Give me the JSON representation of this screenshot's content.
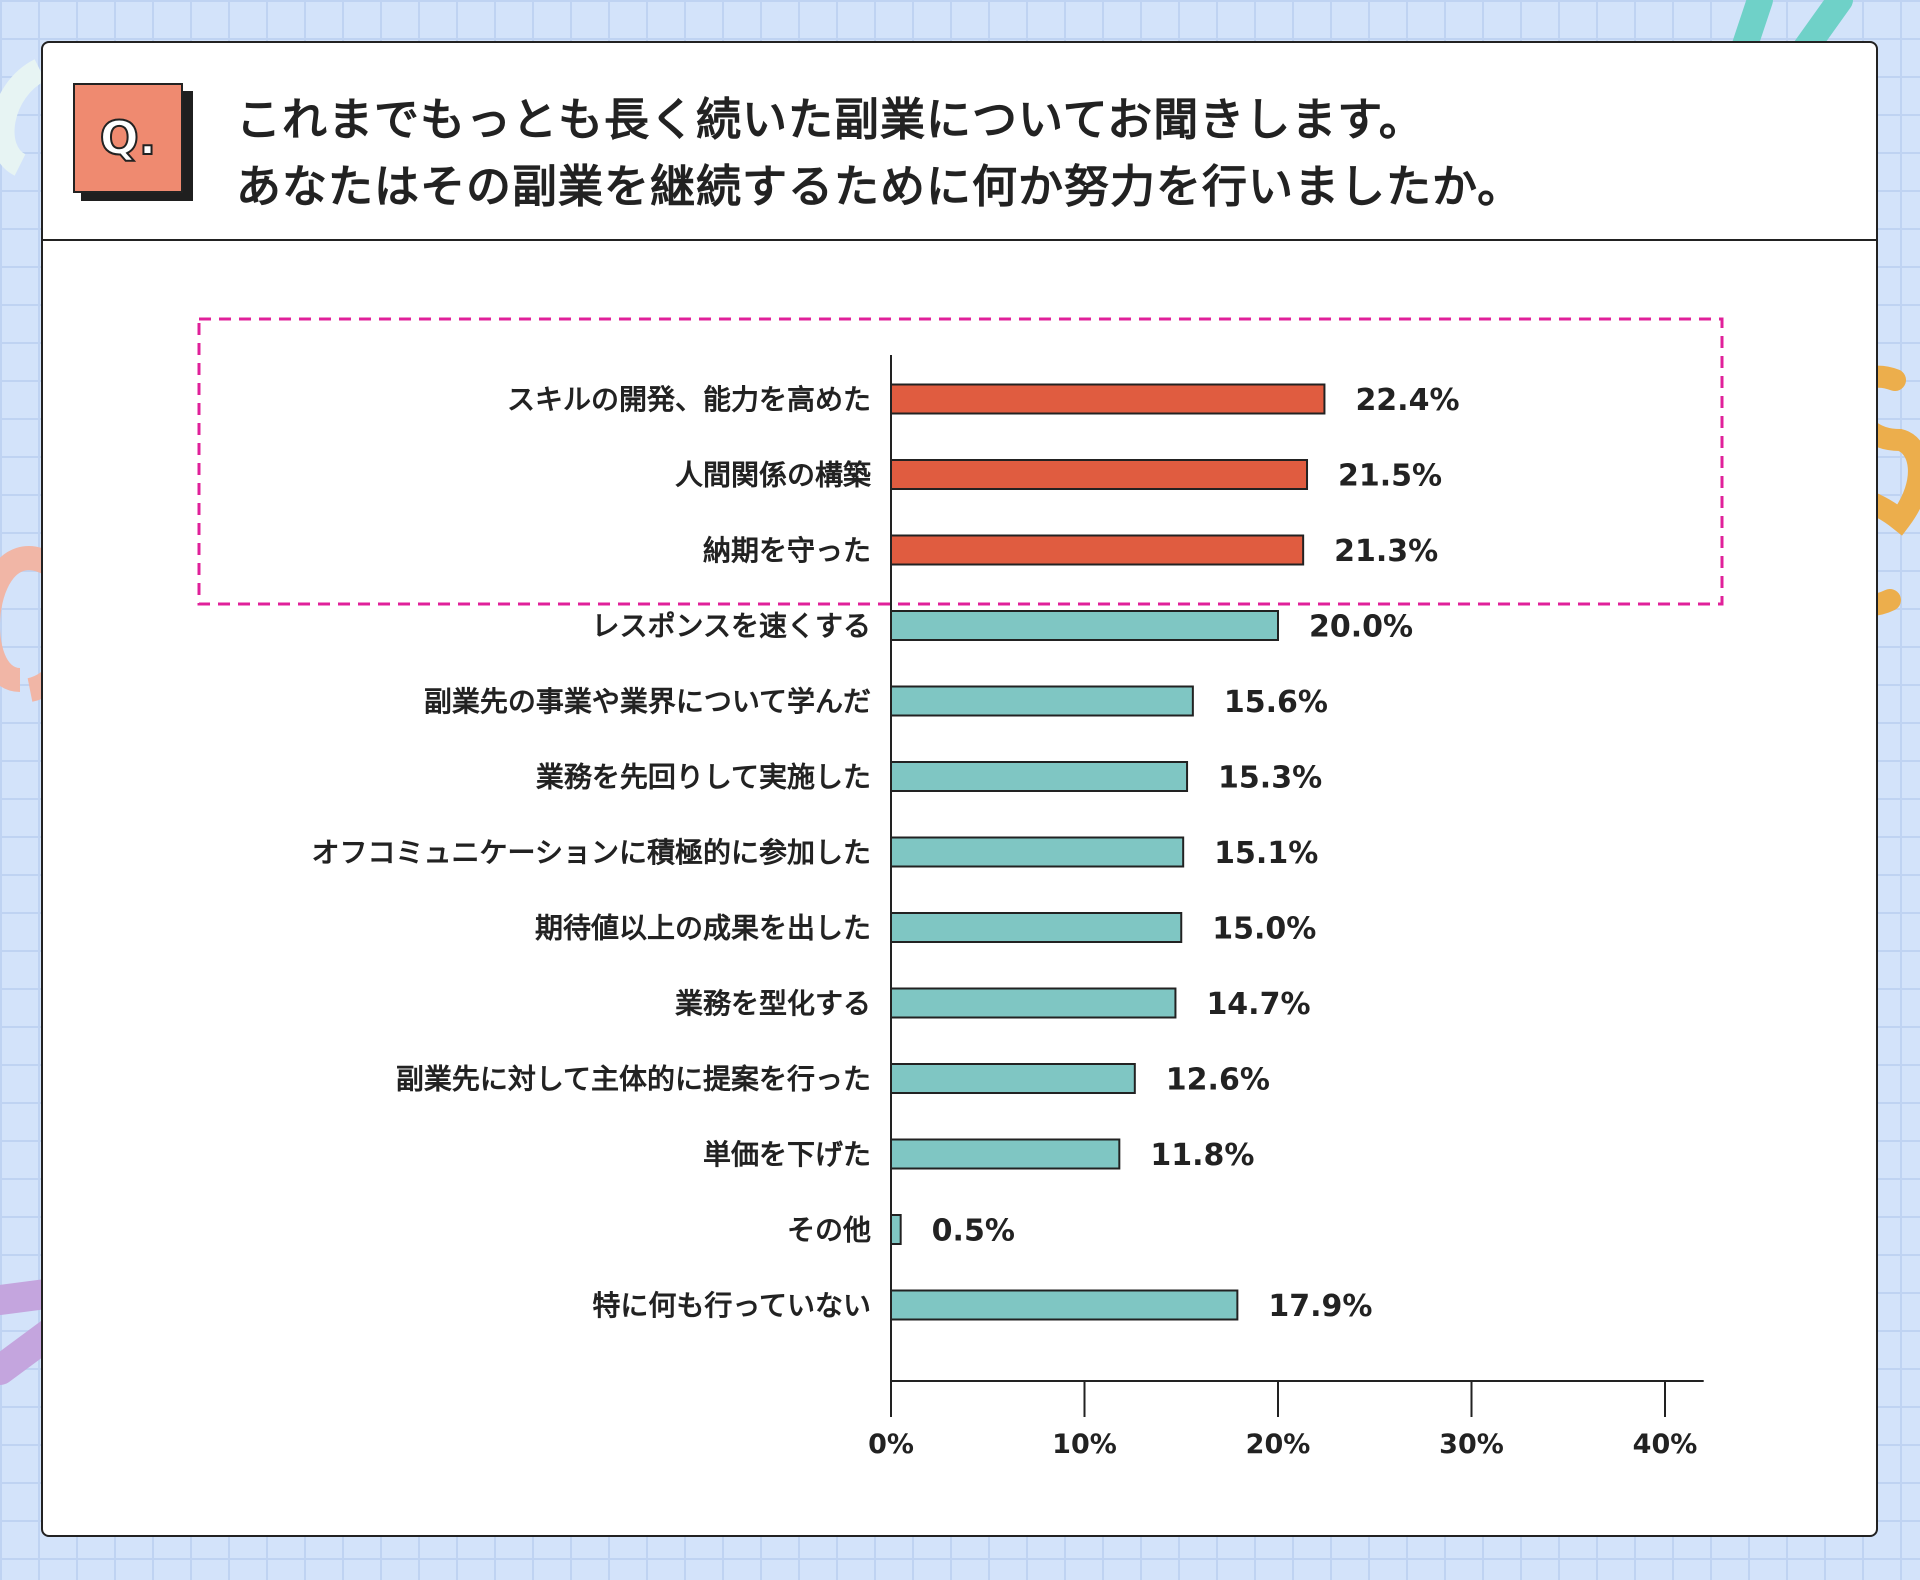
{
  "question_badge": "Q.",
  "title": {
    "line1": "これまでもっとも長く続いた副業についてお聞きします。",
    "line2": "あなたはその副業を継続するために何か努力を行いましたか。"
  },
  "colors": {
    "highlight": "#e05c40",
    "normal": "#7fc6c3",
    "highlight_box": "#e0209a",
    "grid_background": "#d3e3fa"
  },
  "chart_data": {
    "type": "bar",
    "orientation": "horizontal",
    "categories": [
      "スキルの開発、能力を高めた",
      "人間関係の構築",
      "納期を守った",
      "レスポンスを速くする",
      "副業先の事業や業界について学んだ",
      "業務を先回りして実施した",
      "オフコミュニケーションに積極的に参加した",
      "期待値以上の成果を出した",
      "業務を型化する",
      "副業先に対して主体的に提案を行った",
      "単価を下げた",
      "その他",
      "特に何も行っていない"
    ],
    "values": [
      22.4,
      21.5,
      21.3,
      20.0,
      15.6,
      15.3,
      15.1,
      15.0,
      14.7,
      12.6,
      11.8,
      0.5,
      17.9
    ],
    "value_labels": [
      "22.4%",
      "21.5%",
      "21.3%",
      "20.0%",
      "15.6%",
      "15.3%",
      "15.1%",
      "15.0%",
      "14.7%",
      "12.6%",
      "11.8%",
      "0.5%",
      "17.9%"
    ],
    "highlighted": [
      true,
      true,
      true,
      false,
      false,
      false,
      false,
      false,
      false,
      false,
      false,
      false,
      false
    ],
    "xlim": [
      0,
      42
    ],
    "xticks": [
      0,
      10,
      20,
      30,
      40
    ],
    "xtick_labels": [
      "0%",
      "10%",
      "20%",
      "30%",
      "40%"
    ],
    "grid": false,
    "legend": false
  }
}
